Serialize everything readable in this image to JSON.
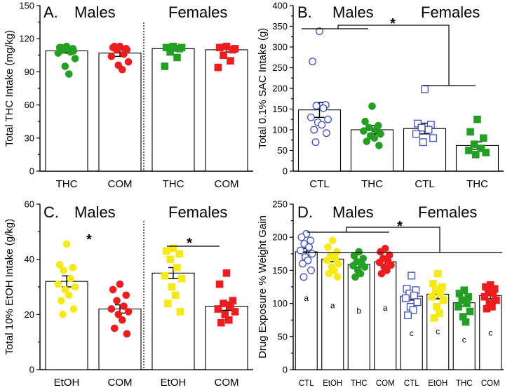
{
  "chart_data": [
    {
      "id": "A",
      "type": "bar",
      "title_parts": [
        "A.",
        "Males",
        "Females"
      ],
      "ylabel": "Total THC Intake (mg/kg)",
      "ylim": [
        0,
        150
      ],
      "yticks": [
        0,
        30,
        60,
        90,
        120,
        150
      ],
      "categories": [
        "THC",
        "COM",
        "THC",
        "COM"
      ],
      "values": [
        109,
        107,
        111,
        110
      ],
      "sem": [
        2,
        3,
        2,
        2
      ],
      "colors": [
        "#22a022",
        "#ee1c1c",
        "#22a022",
        "#ee1c1c"
      ],
      "markers": [
        "circle",
        "circle",
        "square",
        "square"
      ],
      "points": [
        [
          113,
          112,
          111,
          110,
          108,
          107,
          102,
          95,
          88,
          112,
          109
        ],
        [
          113,
          112,
          111,
          110,
          106,
          104,
          99,
          96,
          92,
          113,
          110
        ],
        [
          113,
          112,
          111,
          108,
          103,
          95,
          112
        ],
        [
          113,
          112,
          110,
          105,
          100,
          94,
          111
        ]
      ],
      "divider_after": 1,
      "annotations": []
    },
    {
      "id": "B",
      "type": "bar",
      "title_parts": [
        "B.",
        "Males",
        "Females"
      ],
      "ylabel": "Total 0.1% SAC Intake (g)",
      "ylim": [
        0,
        400
      ],
      "yticks": [
        0,
        50,
        100,
        150,
        200,
        250,
        300,
        350,
        400
      ],
      "categories": [
        "CTL",
        "THC",
        "CTL",
        "THC"
      ],
      "values": [
        148,
        100,
        103,
        62
      ],
      "sem": [
        18,
        10,
        13,
        9
      ],
      "colors": [
        "#3b4dc8",
        "#22a022",
        "#3b4dc8",
        "#22a022"
      ],
      "markers": [
        "open-circle",
        "circle",
        "open-square",
        "square"
      ],
      "points": [
        [
          338,
          265,
          160,
          158,
          152,
          130,
          125,
          118,
          112,
          100,
          92,
          70
        ],
        [
          157,
          120,
          110,
          105,
          100,
          97,
          90,
          85,
          80,
          72,
          62
        ],
        [
          198,
          115,
          112,
          105,
          100,
          90,
          80,
          70
        ],
        [
          125,
          95,
          80,
          65,
          55,
          50,
          45,
          40
        ]
      ],
      "divider_after": null,
      "annotations": [
        "*"
      ]
    },
    {
      "id": "C",
      "type": "bar",
      "title_parts": [
        "C.",
        "Males",
        "Females"
      ],
      "ylabel": "Total 10% EtOH Intake (g/kg)",
      "ylim": [
        0,
        60
      ],
      "yticks": [
        0,
        20,
        40,
        60
      ],
      "categories": [
        "EtOH",
        "COM",
        "EtOH",
        "COM"
      ],
      "values": [
        32,
        22,
        35,
        23
      ],
      "sem": [
        2,
        1.5,
        2,
        1.5
      ],
      "colors": [
        "#f5ea14",
        "#ee1c1c",
        "#f5ea14",
        "#ee1c1c"
      ],
      "markers": [
        "circle",
        "circle",
        "square",
        "square"
      ],
      "points": [
        [
          45.5,
          38,
          37,
          36,
          33,
          31,
          30,
          29,
          27,
          25,
          22,
          20
        ],
        [
          31,
          29,
          27,
          25,
          23,
          22,
          21,
          20,
          18,
          15,
          13
        ],
        [
          44,
          43,
          42,
          40,
          37,
          34,
          33,
          30,
          27,
          24,
          21
        ],
        [
          35,
          31,
          25,
          24,
          23,
          22,
          21,
          20,
          18,
          17
        ]
      ],
      "divider_after": 1,
      "annotations": [
        "*",
        "*"
      ]
    },
    {
      "id": "D",
      "type": "bar",
      "title_parts": [
        "D.",
        "Males",
        "Females"
      ],
      "ylabel": "Drug Exposure % Weight Gain",
      "ylim": [
        0,
        250
      ],
      "yticks": [
        0,
        50,
        100,
        150,
        200,
        250
      ],
      "categories": [
        "CTL",
        "EtOH",
        "THC",
        "COM",
        "CTL",
        "EtOH",
        "THC",
        "COM"
      ],
      "values": [
        178,
        167,
        159,
        163,
        111,
        114,
        101,
        112
      ],
      "sem": [
        5,
        4,
        4,
        5,
        6,
        7,
        5,
        5
      ],
      "colors": [
        "#3b4dc8",
        "#f5ea14",
        "#22a022",
        "#ee1c1c",
        "#3b4dc8",
        "#f5ea14",
        "#22a022",
        "#ee1c1c"
      ],
      "markers": [
        "open-circle",
        "circle",
        "circle",
        "circle",
        "open-square",
        "square",
        "square",
        "square"
      ],
      "points": [
        [
          205,
          200,
          195,
          190,
          185,
          180,
          175,
          170,
          165,
          160,
          150,
          140
        ],
        [
          195,
          185,
          178,
          172,
          168,
          165,
          160,
          155,
          150,
          145,
          140
        ],
        [
          178,
          172,
          168,
          163,
          160,
          157,
          155,
          150,
          145,
          140
        ],
        [
          183,
          178,
          173,
          168,
          165,
          162,
          158,
          155,
          150,
          145
        ],
        [
          142,
          122,
          120,
          115,
          112,
          108,
          102,
          95,
          90,
          82
        ],
        [
          145,
          130,
          125,
          120,
          115,
          110,
          105,
          95,
          85,
          78
        ],
        [
          120,
          115,
          110,
          105,
          100,
          95,
          88,
          80,
          72
        ],
        [
          128,
          125,
          122,
          118,
          115,
          110,
          105,
          100,
          95,
          92
        ]
      ],
      "letters": [
        "a",
        "a",
        "b",
        "a",
        "c",
        "c",
        "c",
        "c"
      ],
      "divider_after": null,
      "annotations": [
        "*"
      ]
    }
  ]
}
